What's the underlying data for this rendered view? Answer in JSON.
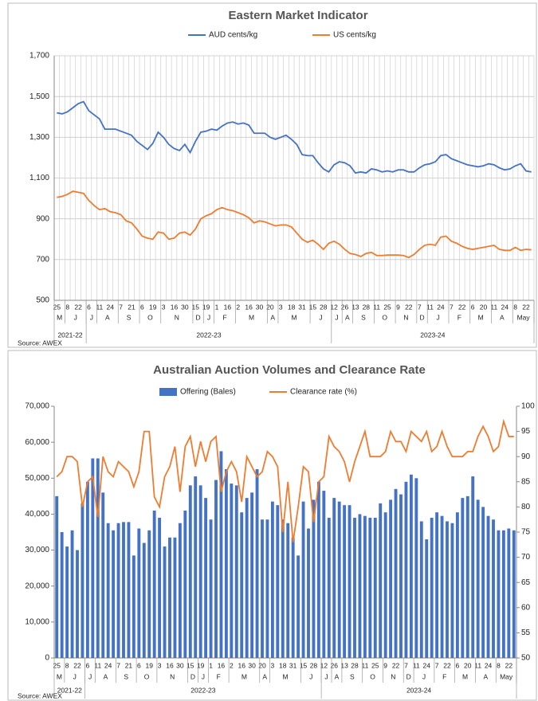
{
  "chart_data": [
    {
      "type": "line",
      "title": "Eastern Market Indicator",
      "source": "Source: AWEX",
      "grid": true,
      "categories": [
        "25",
        null,
        "8",
        null,
        "22",
        null,
        "6",
        null,
        "11",
        null,
        "24",
        null,
        "7",
        null,
        "21",
        null,
        "6",
        null,
        "19",
        null,
        "3",
        null,
        "16",
        null,
        "30",
        null,
        "15",
        null,
        "19",
        null,
        "1",
        null,
        "16",
        null,
        "2",
        null,
        "16",
        null,
        "30",
        null,
        "20",
        null,
        "3",
        null,
        "18",
        null,
        "31",
        null,
        "15",
        null,
        "28",
        null,
        "12",
        null,
        "26",
        null,
        "13",
        null,
        "28",
        null,
        "11",
        null,
        "25",
        null,
        "9",
        null,
        "22",
        null,
        "7",
        null,
        "11",
        null,
        "24",
        null,
        "7",
        null,
        "22",
        null,
        "6",
        null,
        "20",
        null,
        "11",
        null,
        "24",
        null,
        "8",
        null,
        "22",
        null
      ],
      "x_groups": [
        {
          "label": "M",
          "count": 2
        },
        {
          "label": "J",
          "count": 4
        },
        {
          "label": "J",
          "count": 2
        },
        {
          "label": "A",
          "count": 4
        },
        {
          "label": "S",
          "count": 4
        },
        {
          "label": "O",
          "count": 4
        },
        {
          "label": "N",
          "count": 6
        },
        {
          "label": "D",
          "count": 2
        },
        {
          "label": "J",
          "count": 2
        },
        {
          "label": "F",
          "count": 4
        },
        {
          "label": "M",
          "count": 6
        },
        {
          "label": "A",
          "count": 2
        },
        {
          "label": "M",
          "count": 6
        },
        {
          "label": "J",
          "count": 4
        },
        {
          "label": "J",
          "count": 2
        },
        {
          "label": "A",
          "count": 2
        },
        {
          "label": "S",
          "count": 4
        },
        {
          "label": "O",
          "count": 4
        },
        {
          "label": "N",
          "count": 4
        },
        {
          "label": "D",
          "count": 2
        },
        {
          "label": "J",
          "count": 4
        },
        {
          "label": "F",
          "count": 4
        },
        {
          "label": "M",
          "count": 4
        },
        {
          "label": "A",
          "count": 4
        },
        {
          "label": "May",
          "count": 4
        }
      ],
      "x_supergroups": [
        {
          "label": "2021-22",
          "count": 6
        },
        {
          "label": "2022-23",
          "count": 46
        },
        {
          "label": "2023-24",
          "count": 38
        }
      ],
      "series": [
        {
          "name": "AUD cents/kg",
          "color": "#4472c4",
          "values": [
            1420,
            1415,
            1425,
            1445,
            1465,
            1475,
            1430,
            1410,
            1390,
            1340,
            1340,
            1340,
            1330,
            1320,
            1310,
            1280,
            1260,
            1240,
            1270,
            1325,
            1300,
            1265,
            1245,
            1235,
            1265,
            1225,
            1280,
            1325,
            1330,
            1340,
            1335,
            1355,
            1370,
            1375,
            1365,
            1370,
            1360,
            1320,
            1320,
            1320,
            1300,
            1290,
            1300,
            1310,
            1290,
            1265,
            1215,
            1210,
            1210,
            1175,
            1145,
            1130,
            1165,
            1180,
            1175,
            1160,
            1125,
            1130,
            1125,
            1145,
            1140,
            1130,
            1135,
            1130,
            1140,
            1140,
            1130,
            1130,
            1150,
            1165,
            1170,
            1180,
            1210,
            1215,
            1195,
            1185,
            1175,
            1165,
            1160,
            1155,
            1160,
            1170,
            1165,
            1150,
            1140,
            1145,
            1160,
            1170,
            1135,
            1130
          ]
        },
        {
          "name": "US cents/kg",
          "color": "#ed7d31",
          "values": [
            1005,
            1010,
            1020,
            1035,
            1030,
            1025,
            990,
            965,
            945,
            950,
            935,
            930,
            920,
            890,
            880,
            850,
            815,
            805,
            800,
            835,
            830,
            800,
            805,
            830,
            835,
            820,
            850,
            900,
            915,
            925,
            945,
            955,
            945,
            940,
            930,
            920,
            905,
            880,
            890,
            885,
            875,
            865,
            870,
            870,
            860,
            830,
            800,
            785,
            795,
            775,
            750,
            780,
            790,
            775,
            750,
            730,
            725,
            715,
            730,
            735,
            720,
            720,
            722,
            722,
            722,
            720,
            710,
            725,
            750,
            770,
            775,
            770,
            810,
            815,
            790,
            780,
            765,
            755,
            750,
            755,
            760,
            765,
            770,
            750,
            745,
            745,
            760,
            745,
            750,
            748
          ]
        }
      ],
      "ylim": [
        500,
        1700
      ],
      "yticks": [
        500,
        700,
        900,
        {
          "value": 1100,
          "label": "1,100"
        },
        {
          "value": 1300,
          "label": "1,300"
        },
        {
          "value": 1500,
          "label": "1,500"
        },
        {
          "value": 1700,
          "label": "1,700"
        }
      ]
    },
    {
      "type": "bar",
      "title": "Australian Auction Volumes and Clearance Rate",
      "source": "Source: AWEX",
      "grid": false,
      "categories": [
        "25",
        null,
        "8",
        null,
        "22",
        null,
        "6",
        null,
        "11",
        null,
        "24",
        null,
        "7",
        null,
        "21",
        null,
        "6",
        null,
        "19",
        null,
        "3",
        null,
        "16",
        null,
        "30",
        null,
        "15",
        null,
        "19",
        null,
        "1",
        null,
        "16",
        null,
        "2",
        null,
        "16",
        null,
        "30",
        null,
        "20",
        null,
        "3",
        null,
        "18",
        null,
        "31",
        null,
        "15",
        null,
        "28",
        null,
        "12",
        null,
        "26",
        null,
        "13",
        null,
        "28",
        null,
        "11",
        null,
        "25",
        null,
        "9",
        null,
        "22",
        null,
        "7",
        null,
        "11",
        null,
        "24",
        null,
        "7",
        null,
        "22",
        null,
        "6",
        null,
        "20",
        null,
        "11",
        null,
        "24",
        null,
        "8",
        null,
        "22",
        null
      ],
      "x_groups": [
        {
          "label": "M",
          "count": 2
        },
        {
          "label": "J",
          "count": 4
        },
        {
          "label": "J",
          "count": 2
        },
        {
          "label": "A",
          "count": 4
        },
        {
          "label": "S",
          "count": 4
        },
        {
          "label": "O",
          "count": 4
        },
        {
          "label": "N",
          "count": 6
        },
        {
          "label": "D",
          "count": 2
        },
        {
          "label": "J",
          "count": 2
        },
        {
          "label": "F",
          "count": 4
        },
        {
          "label": "M",
          "count": 6
        },
        {
          "label": "A",
          "count": 2
        },
        {
          "label": "M",
          "count": 6
        },
        {
          "label": "J",
          "count": 4
        },
        {
          "label": "J",
          "count": 2
        },
        {
          "label": "A",
          "count": 2
        },
        {
          "label": "S",
          "count": 4
        },
        {
          "label": "O",
          "count": 4
        },
        {
          "label": "N",
          "count": 4
        },
        {
          "label": "D",
          "count": 2
        },
        {
          "label": "J",
          "count": 4
        },
        {
          "label": "F",
          "count": 4
        },
        {
          "label": "M",
          "count": 4
        },
        {
          "label": "A",
          "count": 4
        },
        {
          "label": "May",
          "count": 4
        }
      ],
      "x_supergroups": [
        {
          "label": "2021-22",
          "count": 6
        },
        {
          "label": "2022-23",
          "count": 46
        },
        {
          "label": "2023-24",
          "count": 38
        }
      ],
      "series": [
        {
          "name": "Offering (Bales)",
          "type": "bar",
          "color": "#4472c4",
          "values": [
            45000,
            35000,
            31000,
            35500,
            30000,
            43000,
            49000,
            55500,
            55500,
            46000,
            37500,
            35500,
            37500,
            37800,
            37800,
            28500,
            36000,
            32000,
            35500,
            41000,
            39000,
            31000,
            33500,
            33500,
            37500,
            41000,
            48000,
            50500,
            48000,
            44500,
            38500,
            49500,
            57500,
            52500,
            48500,
            48000,
            40500,
            44500,
            46000,
            52500,
            38500,
            38500,
            43500,
            42500,
            38500,
            37500,
            33500,
            28500,
            43500,
            36000,
            44000,
            49000,
            46500,
            39000,
            44500,
            43500,
            42500,
            42500,
            39000,
            40000,
            39500,
            39000,
            39000,
            43000,
            40500,
            44000,
            47000,
            45500,
            49000,
            51000,
            50000,
            38000,
            33000,
            39000,
            40500,
            39500,
            38000,
            37500,
            40500,
            44500,
            45000,
            50500,
            44000,
            42000,
            39500,
            38500,
            35500,
            35500,
            36000,
            35500
          ]
        },
        {
          "name": "Clearance rate (%)",
          "type": "line",
          "axis": "y2",
          "color": "#ed7d31",
          "values": [
            86,
            87,
            90,
            90,
            89,
            80,
            85,
            86,
            78,
            90,
            87,
            86,
            89,
            88,
            87,
            84,
            87,
            95,
            95,
            82,
            80,
            86,
            88,
            92,
            83,
            92,
            94,
            88,
            93,
            89,
            93,
            94,
            83,
            87,
            89,
            87,
            81,
            90,
            88,
            86,
            87,
            91,
            90,
            88,
            75,
            85,
            73,
            80,
            88,
            87,
            77,
            85,
            86,
            94,
            92,
            91,
            89,
            85,
            89,
            92,
            95,
            90,
            90,
            90,
            91,
            95,
            93,
            93,
            91,
            95,
            94,
            93,
            95,
            91,
            92,
            95,
            92,
            90,
            90,
            90,
            91,
            91,
            94,
            96,
            94,
            91,
            92,
            97,
            94,
            94
          ]
        }
      ],
      "ylim": [
        0,
        70000
      ],
      "yticks": [
        0,
        {
          "value": 10000,
          "label": "10,000"
        },
        {
          "value": 20000,
          "label": "20,000"
        },
        {
          "value": 30000,
          "label": "30,000"
        },
        {
          "value": 40000,
          "label": "40,000"
        },
        {
          "value": 50000,
          "label": "50,000"
        },
        {
          "value": 60000,
          "label": "60,000"
        },
        {
          "value": 70000,
          "label": "70,000"
        }
      ],
      "y2lim": [
        50,
        100
      ],
      "y2ticks": [
        50,
        55,
        60,
        65,
        70,
        75,
        80,
        85,
        90,
        95,
        100
      ]
    }
  ]
}
